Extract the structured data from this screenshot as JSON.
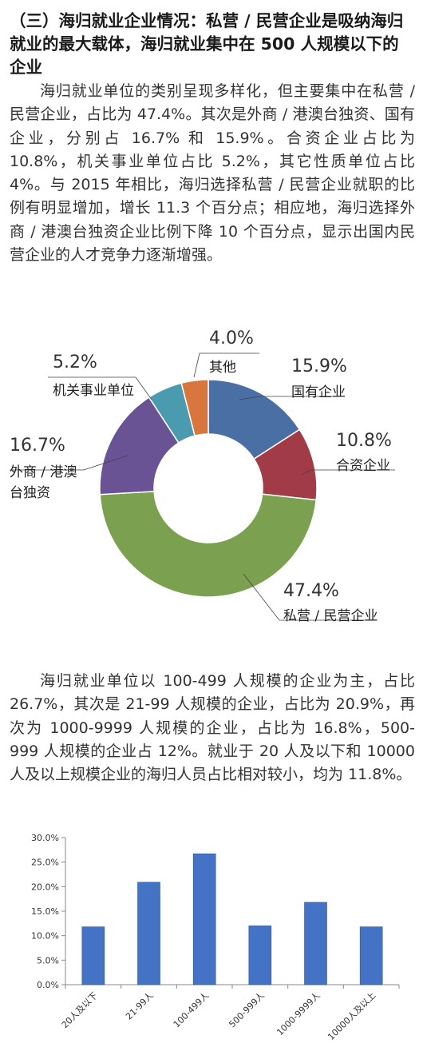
{
  "section": {
    "heading": "（三）海归就业企业情况：私营 / 民营企业是吸纳海归就业的最大载体，海归就业集中在 500 人规模以下的企业",
    "paragraph1": "海归就业单位的类别呈现多样化，但主要集中在私营 / 民营企业，占比为 47.4%。其次是外商 / 港澳台独资、国有企业，分别占 16.7% 和 15.9%。合资企业占比为 10.8%，机关事业单位占比 5.2%，其它性质单位占比 4%。与 2015 年相比，海归选择私营 / 民营企业就职的比例有明显增加，增长 11.3 个百分点；相应地，海归选择外商 / 港澳台独资企业比例下降 10 个百分点，显示出国内民营企业的人才竞争力逐渐增强。",
    "paragraph2": "海归就业单位以 100-499 人规模的企业为主，占比 26.7%，其次是 21-99 人规模的企业，占比为 20.9%，再次为 1000-9999 人规模的企业，占比为 16.8%，500-999 人规模的企业占 12%。就业于 20 人及以下和 10000 人及以上规模企业的海归人员占比相对较小，均为 11.8%。"
  },
  "chart_data": [
    {
      "type": "pie",
      "donut": true,
      "slices": [
        {
          "label": "国有企业",
          "value": 15.9,
          "value_label": "15.9%",
          "color": "#4a6fa5"
        },
        {
          "label": "合资企业",
          "value": 10.8,
          "value_label": "10.8%",
          "color": "#a23b48"
        },
        {
          "label": "私营 / 民营企业",
          "value": 47.4,
          "value_label": "47.4%",
          "color": "#7ba050"
        },
        {
          "label_lines": [
            "外商 / 港澳",
            "台独资"
          ],
          "value": 16.7,
          "value_label": "16.7%",
          "color": "#6a5394"
        },
        {
          "label": "机关事业单位",
          "value": 5.2,
          "value_label": "5.2%",
          "color": "#4a9bb0"
        },
        {
          "label": "其他",
          "value": 4.0,
          "value_label": "4.0%",
          "color": "#d9763d"
        }
      ]
    },
    {
      "type": "bar",
      "categories": [
        "20人及以下",
        "21-99人",
        "100-499人",
        "500-999人",
        "1000-9999人",
        "10000人及以上"
      ],
      "values": [
        11.8,
        20.9,
        26.7,
        12.0,
        16.8,
        11.8
      ],
      "ylim": [
        0,
        30
      ],
      "yticks": [
        "0.0%",
        "5.0%",
        "10.0%",
        "15.0%",
        "20.0%",
        "25.0%",
        "30.0%"
      ],
      "ytick_values": [
        0,
        5,
        10,
        15,
        20,
        25,
        30
      ],
      "bar_color": "#4472c4",
      "grid": false
    }
  ]
}
